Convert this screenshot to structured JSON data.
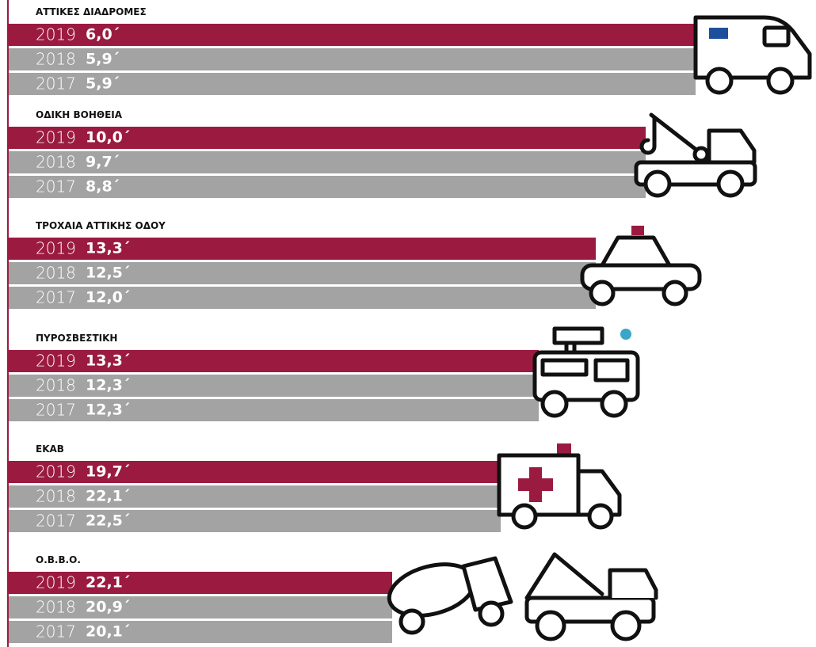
{
  "groups": [
    {
      "title": "ΑΤΤΙΚΕΣ ΔΙΑΔΡΟΜΕΣ",
      "rows": [
        {
          "year": "2019",
          "value": "6,0´"
        },
        {
          "year": "2018",
          "value": "5,9´"
        },
        {
          "year": "2017",
          "value": "5,9´"
        }
      ]
    },
    {
      "title": "ΟΔΙΚΗ ΒΟΗΘΕΙΑ",
      "rows": [
        {
          "year": "2019",
          "value": "10,0´"
        },
        {
          "year": "2018",
          "value": "9,7´"
        },
        {
          "year": "2017",
          "value": "8,8´"
        }
      ]
    },
    {
      "title": "ΤΡΟΧΑΙΑ ΑΤΤΙΚΗΣ ΟΔΟΥ",
      "rows": [
        {
          "year": "2019",
          "value": "13,3´"
        },
        {
          "year": "2018",
          "value": "12,5´"
        },
        {
          "year": "2017",
          "value": "12,0´"
        }
      ]
    },
    {
      "title": "ΠΥΡΟΣΒΕΣΤΙΚΗ",
      "rows": [
        {
          "year": "2019",
          "value": "13,3´"
        },
        {
          "year": "2018",
          "value": "12,3´"
        },
        {
          "year": "2017",
          "value": "12,3´"
        }
      ]
    },
    {
      "title": "ΕΚΑΒ",
      "rows": [
        {
          "year": "2019",
          "value": "19,7´"
        },
        {
          "year": "2018",
          "value": "22,1´"
        },
        {
          "year": "2017",
          "value": "22,5´"
        }
      ]
    },
    {
      "title": "Ο.Β.Β.Ο.",
      "rows": [
        {
          "year": "2019",
          "value": "22,1´"
        },
        {
          "year": "2018",
          "value": "20,9´"
        },
        {
          "year": "2017",
          "value": "20,1´"
        }
      ]
    }
  ]
}
